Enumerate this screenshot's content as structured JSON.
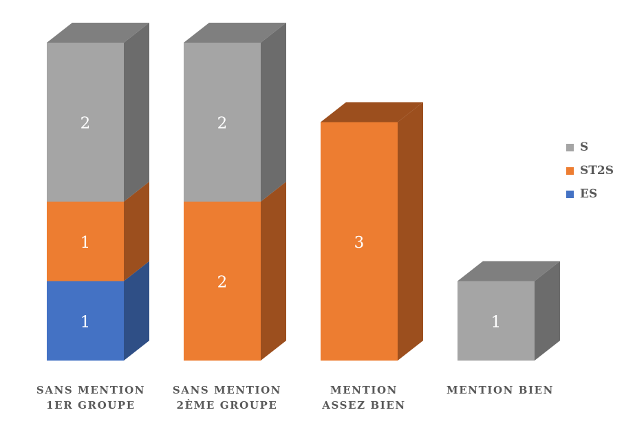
{
  "chart_data": {
    "type": "bar",
    "stacked": true,
    "three_d": true,
    "title": "",
    "xlabel": "",
    "ylabel": "",
    "ylim": [
      0,
      4
    ],
    "grid": false,
    "legend_position": "right",
    "categories": [
      [
        "SANS MENTION",
        "1ER GROUPE"
      ],
      [
        "SANS MENTION",
        "2ÈME GROUPE"
      ],
      [
        "MENTION",
        "ASSEZ BIEN"
      ],
      [
        "MENTION BIEN"
      ]
    ],
    "series": [
      {
        "name": "ES",
        "color": "#4472C4",
        "side_color": "#2F4F86",
        "values": [
          1,
          0,
          0,
          0
        ]
      },
      {
        "name": "ST2S",
        "color": "#ED7D31",
        "side_color": "#9C4F1E",
        "values": [
          1,
          2,
          3,
          0
        ]
      },
      {
        "name": "S",
        "color": "#A5A5A5",
        "side_color": "#6C6C6C",
        "top_color": "#7F7F7F",
        "values": [
          2,
          2,
          0,
          1
        ]
      }
    ],
    "legend_order": [
      "S",
      "ST2S",
      "ES"
    ],
    "data_label_color": "#FFFFFF"
  }
}
